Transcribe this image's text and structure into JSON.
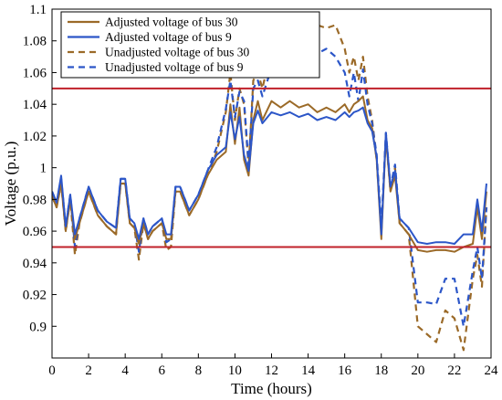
{
  "chart_data": {
    "type": "line",
    "xlabel": "Time (hours)",
    "ylabel": "Voltage (p.u.)",
    "xlim": [
      0,
      24
    ],
    "ylim": [
      0.88,
      1.1
    ],
    "xticks": [
      0,
      2,
      4,
      6,
      8,
      10,
      12,
      14,
      16,
      18,
      20,
      22,
      24
    ],
    "xtick_labels": [
      "0",
      "2",
      "4",
      "6",
      "8",
      "10",
      "12",
      "14",
      "16",
      "18",
      "20",
      "22",
      "24"
    ],
    "yticks": [
      0.9,
      0.92,
      0.94,
      0.96,
      0.98,
      1.0,
      1.02,
      1.04,
      1.06,
      1.08,
      1.1
    ],
    "ytick_labels": [
      "0.9",
      "0.92",
      "0.94",
      "0.96",
      "0.98",
      "1",
      "1.02",
      "1.04",
      "1.06",
      "1.08",
      "1.1"
    ],
    "grid": false,
    "legend_position": "top-left",
    "reference_lines": [
      {
        "y": 1.05,
        "color": "#c0202a"
      },
      {
        "y": 0.95,
        "color": "#c0202a"
      }
    ],
    "series": [
      {
        "name": "Unadjusted voltage of bus 30",
        "color": "#9b6a28",
        "dash": true,
        "x": [
          0,
          0.25,
          0.5,
          0.75,
          1.0,
          1.25,
          1.5,
          2.0,
          2.5,
          3.0,
          3.5,
          3.75,
          4.0,
          4.25,
          4.5,
          4.75,
          5.0,
          5.25,
          5.5,
          6.0,
          6.25,
          6.5,
          6.75,
          7.0,
          7.5,
          8.0,
          8.5,
          9.0,
          9.5,
          9.75,
          10.0,
          10.25,
          10.5,
          10.75,
          11.0,
          11.25,
          11.5,
          12.0,
          12.5,
          13.0,
          13.5,
          14.0,
          14.5,
          15.0,
          15.5,
          16.0,
          16.25,
          16.5,
          16.75,
          17.0,
          17.25,
          17.5,
          17.75,
          18.0,
          18.25,
          18.5,
          18.75,
          19.0,
          19.5,
          20.0,
          20.5,
          21.0,
          21.5,
          22.0,
          22.5,
          23.0,
          23.25,
          23.5,
          23.75
        ],
        "values": [
          0.982,
          0.975,
          0.99,
          0.96,
          0.98,
          0.945,
          0.965,
          0.985,
          0.97,
          0.963,
          0.958,
          0.99,
          0.99,
          0.965,
          0.962,
          0.942,
          0.965,
          0.955,
          0.96,
          0.965,
          0.948,
          0.95,
          0.985,
          0.985,
          0.97,
          0.98,
          0.995,
          1.01,
          1.035,
          1.06,
          1.03,
          1.05,
          1.04,
          1.0,
          1.055,
          1.06,
          1.05,
          1.075,
          1.08,
          1.075,
          1.07,
          1.092,
          1.09,
          1.088,
          1.09,
          1.075,
          1.06,
          1.07,
          1.055,
          1.07,
          1.045,
          1.03,
          1.005,
          0.96,
          1.02,
          0.985,
          1.0,
          0.965,
          0.958,
          0.9,
          0.895,
          0.89,
          0.91,
          0.905,
          0.885,
          0.93,
          0.945,
          0.925,
          0.975
        ]
      },
      {
        "name": "Unadjusted voltage of bus 9",
        "color": "#2c56c8",
        "dash": true,
        "x": [
          0,
          0.25,
          0.5,
          0.75,
          1.0,
          1.25,
          1.5,
          2.0,
          2.5,
          3.0,
          3.5,
          3.75,
          4.0,
          4.25,
          4.5,
          4.75,
          5.0,
          5.25,
          5.5,
          6.0,
          6.25,
          6.5,
          6.75,
          7.0,
          7.5,
          8.0,
          8.5,
          9.0,
          9.5,
          9.75,
          10.0,
          10.25,
          10.5,
          10.75,
          11.0,
          11.25,
          11.5,
          12.0,
          12.5,
          13.0,
          13.5,
          14.0,
          14.5,
          15.0,
          15.5,
          16.0,
          16.25,
          16.5,
          16.75,
          17.0,
          17.25,
          17.5,
          17.75,
          18.0,
          18.25,
          18.5,
          18.75,
          19.0,
          19.5,
          20.0,
          20.5,
          21.0,
          21.5,
          22.0,
          22.5,
          23.0,
          23.25,
          23.5,
          23.75
        ],
        "values": [
          0.985,
          0.978,
          0.993,
          0.963,
          0.983,
          0.95,
          0.968,
          0.988,
          0.973,
          0.966,
          0.962,
          0.993,
          0.993,
          0.968,
          0.965,
          0.947,
          0.968,
          0.958,
          0.963,
          0.968,
          0.953,
          0.955,
          0.988,
          0.988,
          0.973,
          0.983,
          0.998,
          1.013,
          1.037,
          1.055,
          1.032,
          1.048,
          1.042,
          1.002,
          1.05,
          1.055,
          1.045,
          1.063,
          1.065,
          1.062,
          1.06,
          1.07,
          1.072,
          1.075,
          1.07,
          1.06,
          1.045,
          1.06,
          1.042,
          1.062,
          1.04,
          1.028,
          1.008,
          0.963,
          1.022,
          0.988,
          1.002,
          0.968,
          0.962,
          0.915,
          0.915,
          0.914,
          0.93,
          0.93,
          0.9,
          0.935,
          0.95,
          0.93,
          0.975
        ]
      },
      {
        "name": "Adjusted voltage of bus 30",
        "color": "#9b6a28",
        "dash": false,
        "x": [
          0,
          0.25,
          0.5,
          0.75,
          1.0,
          1.25,
          1.5,
          2.0,
          2.5,
          3.0,
          3.5,
          3.75,
          4.0,
          4.25,
          4.5,
          4.75,
          5.0,
          5.25,
          5.5,
          6.0,
          6.25,
          6.5,
          6.75,
          7.0,
          7.5,
          8.0,
          8.5,
          9.0,
          9.5,
          9.75,
          10.0,
          10.25,
          10.5,
          10.75,
          11.0,
          11.25,
          11.5,
          12.0,
          12.5,
          13.0,
          13.5,
          14.0,
          14.5,
          15.0,
          15.5,
          16.0,
          16.25,
          16.5,
          16.75,
          17.0,
          17.25,
          17.5,
          17.75,
          18.0,
          18.25,
          18.5,
          18.75,
          19.0,
          19.5,
          20.0,
          20.5,
          21.0,
          21.5,
          22.0,
          22.5,
          23.0,
          23.25,
          23.5,
          23.75
        ],
        "values": [
          0.982,
          0.975,
          0.99,
          0.96,
          0.98,
          0.955,
          0.965,
          0.985,
          0.97,
          0.963,
          0.958,
          0.99,
          0.99,
          0.965,
          0.962,
          0.952,
          0.965,
          0.955,
          0.96,
          0.965,
          0.955,
          0.955,
          0.985,
          0.985,
          0.97,
          0.98,
          0.995,
          1.005,
          1.01,
          1.04,
          1.015,
          1.038,
          1.005,
          0.995,
          1.03,
          1.042,
          1.03,
          1.042,
          1.038,
          1.042,
          1.038,
          1.04,
          1.035,
          1.038,
          1.035,
          1.04,
          1.035,
          1.04,
          1.042,
          1.045,
          1.03,
          1.025,
          1.005,
          0.955,
          1.02,
          0.985,
          0.995,
          0.965,
          0.958,
          0.948,
          0.947,
          0.948,
          0.948,
          0.947,
          0.95,
          0.952,
          0.975,
          0.955,
          0.985
        ]
      },
      {
        "name": "Adjusted voltage of bus 9",
        "color": "#2c56c8",
        "dash": false,
        "x": [
          0,
          0.25,
          0.5,
          0.75,
          1.0,
          1.25,
          1.5,
          2.0,
          2.5,
          3.0,
          3.5,
          3.75,
          4.0,
          4.25,
          4.5,
          4.75,
          5.0,
          5.25,
          5.5,
          6.0,
          6.25,
          6.5,
          6.75,
          7.0,
          7.5,
          8.0,
          8.5,
          9.0,
          9.5,
          9.75,
          10.0,
          10.25,
          10.5,
          10.75,
          11.0,
          11.25,
          11.5,
          12.0,
          12.5,
          13.0,
          13.5,
          14.0,
          14.5,
          15.0,
          15.5,
          16.0,
          16.25,
          16.5,
          16.75,
          17.0,
          17.25,
          17.5,
          17.75,
          18.0,
          18.25,
          18.5,
          18.75,
          19.0,
          19.5,
          20.0,
          20.5,
          21.0,
          21.5,
          22.0,
          22.5,
          23.0,
          23.25,
          23.5,
          23.75
        ],
        "values": [
          0.985,
          0.978,
          0.995,
          0.963,
          0.983,
          0.958,
          0.968,
          0.988,
          0.973,
          0.966,
          0.962,
          0.993,
          0.993,
          0.968,
          0.965,
          0.955,
          0.968,
          0.958,
          0.963,
          0.968,
          0.958,
          0.958,
          0.988,
          0.988,
          0.973,
          0.983,
          0.998,
          1.008,
          1.013,
          1.035,
          1.018,
          1.032,
          1.008,
          0.998,
          1.028,
          1.036,
          1.028,
          1.035,
          1.033,
          1.035,
          1.032,
          1.034,
          1.03,
          1.032,
          1.03,
          1.035,
          1.032,
          1.035,
          1.036,
          1.038,
          1.028,
          1.023,
          1.007,
          0.958,
          1.022,
          0.988,
          0.998,
          0.968,
          0.962,
          0.953,
          0.952,
          0.953,
          0.953,
          0.952,
          0.958,
          0.958,
          0.98,
          0.96,
          0.99
        ]
      }
    ],
    "legend": [
      {
        "name": "Adjusted voltage of bus 30",
        "color": "#9b6a28",
        "dash": false
      },
      {
        "name": "Adjusted voltage of bus 9",
        "color": "#2c56c8",
        "dash": false
      },
      {
        "name": "Unadjusted voltage of bus 30",
        "color": "#9b6a28",
        "dash": true
      },
      {
        "name": "Unadjusted voltage of bus 9",
        "color": "#2c56c8",
        "dash": true
      }
    ]
  }
}
